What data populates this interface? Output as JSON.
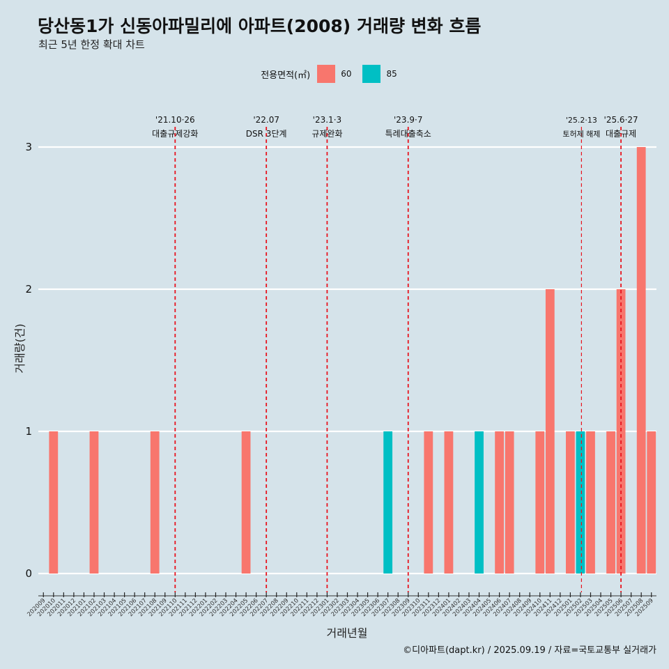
{
  "header": {
    "title": "당산동1가 신동아파밀리에 아파트(2008) 거래량 변화 흐름",
    "subtitle": "최근 5년 한정 확대 차트"
  },
  "legend": {
    "title": "전용면적(㎡)",
    "items": [
      {
        "label": "60",
        "color": "#F8766D"
      },
      {
        "label": "85",
        "color": "#00BFC4"
      }
    ]
  },
  "caption": "©디아파트(dapt.kr) / 2025.09.19 / 자료=국토교통부 실거래가",
  "chart_data": {
    "type": "bar",
    "title": "당산동1가 신동아파밀리에 아파트(2008) 거래량 변화 흐름",
    "xlabel": "거래년월",
    "ylabel": "거래량(건)",
    "ylim": [
      0,
      3
    ],
    "yticks": [
      0,
      1,
      2,
      3
    ],
    "categories": [
      "202009",
      "202010",
      "202011",
      "202012",
      "202101",
      "202102",
      "202103",
      "202104",
      "202105",
      "202106",
      "202107",
      "202108",
      "202109",
      "202110",
      "202111",
      "202112",
      "202201",
      "202202",
      "202203",
      "202204",
      "202205",
      "202206",
      "202207",
      "202208",
      "202209",
      "202210",
      "202211",
      "202212",
      "202301",
      "202302",
      "202303",
      "202304",
      "202305",
      "202306",
      "202307",
      "202308",
      "202309",
      "202310",
      "202311",
      "202312",
      "202401",
      "202402",
      "202403",
      "202404",
      "202405",
      "202406",
      "202407",
      "202408",
      "202409",
      "202410",
      "202411",
      "202412",
      "202501",
      "202502",
      "202503",
      "202504",
      "202505",
      "202506",
      "202507",
      "202508",
      "202509"
    ],
    "series": [
      {
        "name": "60",
        "color": "#F8766D",
        "values": [
          0,
          1,
          0,
          0,
          0,
          1,
          0,
          0,
          0,
          0,
          0,
          1,
          0,
          0,
          0,
          0,
          0,
          0,
          0,
          0,
          1,
          0,
          0,
          0,
          0,
          0,
          0,
          0,
          0,
          0,
          0,
          0,
          0,
          0,
          0,
          0,
          0,
          0,
          1,
          0,
          1,
          0,
          0,
          0,
          0,
          1,
          1,
          0,
          0,
          1,
          2,
          0,
          1,
          0,
          1,
          0,
          1,
          2,
          0,
          3,
          1
        ]
      },
      {
        "name": "85",
        "color": "#00BFC4",
        "values": [
          0,
          0,
          0,
          0,
          0,
          0,
          0,
          0,
          0,
          0,
          0,
          0,
          0,
          0,
          0,
          0,
          0,
          0,
          0,
          0,
          0,
          0,
          0,
          0,
          0,
          0,
          0,
          0,
          0,
          0,
          0,
          0,
          0,
          0,
          1,
          0,
          0,
          0,
          0,
          0,
          0,
          0,
          0,
          1,
          0,
          0,
          0,
          0,
          0,
          0,
          0,
          0,
          0,
          1,
          0,
          0,
          0,
          0,
          0,
          0,
          0
        ]
      }
    ],
    "events": [
      {
        "month": "202110",
        "offset": 0,
        "date": "'21.10·26",
        "label": "대출규제강화"
      },
      {
        "month": "202207",
        "offset": 0,
        "date": "'22.07",
        "label": "DSR 3단계"
      },
      {
        "month": "202301",
        "offset": 0,
        "date": "'23.1·3",
        "label": "규제완화"
      },
      {
        "month": "202309",
        "offset": 0,
        "date": "'23.9·7",
        "label": "특례대출축소"
      },
      {
        "month": "202502",
        "offset": 0.1,
        "date": "'25.2·13",
        "label": "토허제 해제",
        "thin": true
      },
      {
        "month": "202506",
        "offset": 0,
        "date": "'25.6·27",
        "label": "대출규제"
      }
    ]
  }
}
